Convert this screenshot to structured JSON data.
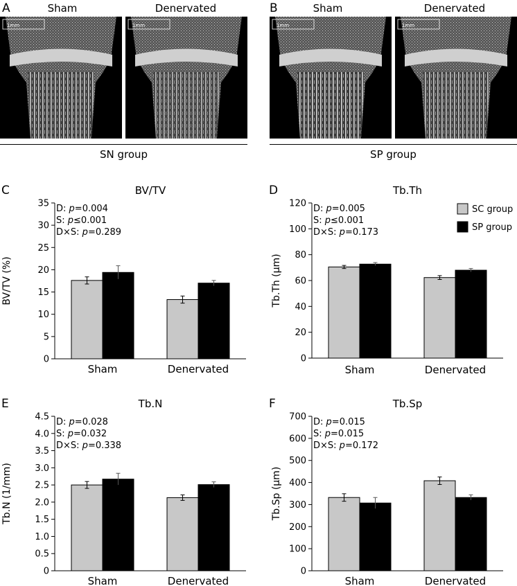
{
  "panels": {
    "A": {
      "letter": "A",
      "left_label": "Sham",
      "right_label": "Denervated",
      "group": "SN group"
    },
    "B": {
      "letter": "B",
      "left_label": "Sham",
      "right_label": "Denervated",
      "group": "SP group"
    }
  },
  "scale_bar_text": "1mm",
  "legend": [
    {
      "name": "SC group",
      "color": "#c8c8c8"
    },
    {
      "name": "SP group",
      "color": "#000000"
    }
  ],
  "chart_data": [
    {
      "letter": "C",
      "type": "bar",
      "title": "BV/TV",
      "ylabel": "BV/TV (%)",
      "categories": [
        "Sham",
        "Denervated"
      ],
      "ylim": [
        0,
        35
      ],
      "yticks": [
        0,
        5,
        10,
        15,
        20,
        25,
        30,
        35
      ],
      "stats": [
        {
          "prefix": "D: ",
          "p": "p",
          "value": "=0.004"
        },
        {
          "prefix": "S: ",
          "p": "p",
          "value": "≤0.001"
        },
        {
          "prefix": "D×S: ",
          "p": "p",
          "value": "=0.289"
        }
      ],
      "series": [
        {
          "name": "SC group",
          "values": [
            17.6,
            13.3
          ],
          "errors": [
            0.8,
            0.8
          ]
        },
        {
          "name": "SP group",
          "values": [
            19.4,
            17.0
          ],
          "errors": [
            1.5,
            0.6
          ]
        }
      ]
    },
    {
      "letter": "D",
      "type": "bar",
      "title": "Tb.Th",
      "ylabel": "Tb.Th (μm)",
      "categories": [
        "Sham",
        "Denervated"
      ],
      "ylim": [
        0,
        120
      ],
      "yticks": [
        0,
        20,
        40,
        60,
        80,
        100,
        120
      ],
      "stats": [
        {
          "prefix": "D: ",
          "p": "p",
          "value": "=0.005"
        },
        {
          "prefix": "S: ",
          "p": "p",
          "value": "≤0.001"
        },
        {
          "prefix": "D×S: ",
          "p": "p",
          "value": "=0.173"
        }
      ],
      "series": [
        {
          "name": "SC group",
          "values": [
            70.5,
            62.3
          ],
          "errors": [
            1.2,
            1.5
          ]
        },
        {
          "name": "SP group",
          "values": [
            72.7,
            68.0
          ],
          "errors": [
            1.2,
            1.3
          ]
        }
      ]
    },
    {
      "letter": "E",
      "type": "bar",
      "title": "Tb.N",
      "ylabel": "Tb.N (1/mm)",
      "categories": [
        "Sham",
        "Denervated"
      ],
      "ylim": [
        0,
        4.5
      ],
      "yticks": [
        "0",
        "0.5",
        "1.0",
        "1.5",
        "2.0",
        "2.5",
        "3.0",
        "3.5",
        "4.0",
        "4.5"
      ],
      "stats": [
        {
          "prefix": "D: ",
          "p": "p",
          "value": "=0.028"
        },
        {
          "prefix": "S: ",
          "p": "p",
          "value": "=0.032"
        },
        {
          "prefix": "D×S: ",
          "p": "p",
          "value": "=0.338"
        }
      ],
      "series": [
        {
          "name": "SC group",
          "values": [
            2.5,
            2.13
          ],
          "errors": [
            0.1,
            0.08
          ]
        },
        {
          "name": "SP group",
          "values": [
            2.67,
            2.51
          ],
          "errors": [
            0.17,
            0.08
          ]
        }
      ]
    },
    {
      "letter": "F",
      "type": "bar",
      "title": "Tb.Sp",
      "ylabel": "Tb.Sp (μm)",
      "categories": [
        "Sham",
        "Denervated"
      ],
      "ylim": [
        0,
        700
      ],
      "yticks": [
        0,
        100,
        200,
        300,
        400,
        500,
        600,
        700
      ],
      "stats": [
        {
          "prefix": "D: ",
          "p": "p",
          "value": "=0.015"
        },
        {
          "prefix": "S: ",
          "p": "p",
          "value": "=0.015"
        },
        {
          "prefix": "D×S: ",
          "p": "p",
          "value": "=0.172"
        }
      ],
      "series": [
        {
          "name": "SC group",
          "values": [
            332,
            408
          ],
          "errors": [
            17,
            17
          ]
        },
        {
          "name": "SP group",
          "values": [
            307,
            332
          ],
          "errors": [
            25,
            12
          ]
        }
      ]
    }
  ]
}
